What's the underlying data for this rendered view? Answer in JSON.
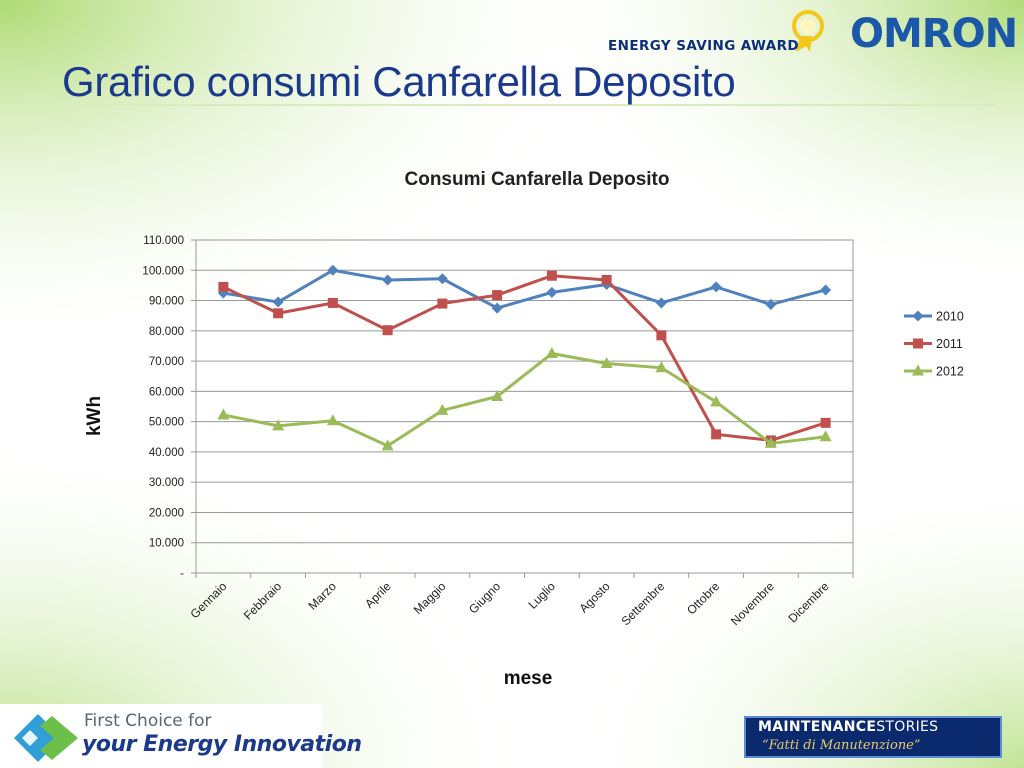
{
  "slide": {
    "title": "Grafico consumi Canfarella Deposito",
    "award_text": "ENERGY SAVING AWARD",
    "brand": "OMRON",
    "footer_tagline_line1": "First Choice for",
    "footer_tagline_line2": "your Energy Innovation",
    "footer_badge_line1": "MAINTENANCE",
    "footer_badge_line1b": "STORIES",
    "footer_badge_line2": "“Fatti di Manutenzione”"
  },
  "colors": {
    "title": "#1b3a8c",
    "brand": "#1b58a8",
    "series_2010": "#4f81bd",
    "series_2011": "#c0504d",
    "series_2012": "#9bbb59",
    "grid": "#9a9a9a",
    "background_green": "#b8e07a"
  },
  "chart_data": {
    "type": "line",
    "title": "Consumi Canfarella Deposito",
    "xlabel": "mese",
    "ylabel": "kWh",
    "categories": [
      "Gennaio",
      "Febbraio",
      "Marzo",
      "Aprile",
      "Maggio",
      "Giugno",
      "Luglio",
      "Agosto",
      "Settembre",
      "Ottobre",
      "Novembre",
      "Dicembre"
    ],
    "ylim": [
      0,
      110000
    ],
    "yticks": [
      "-",
      "10.000",
      "20.000",
      "30.000",
      "40.000",
      "50.000",
      "60.000",
      "70.000",
      "80.000",
      "90.000",
      "100.000",
      "110.000"
    ],
    "grid": true,
    "legend_position": "right",
    "series": [
      {
        "name": "2010",
        "marker": "diamond",
        "color": "#4f81bd",
        "values": [
          92500,
          89500,
          100000,
          96800,
          97200,
          87500,
          92700,
          95300,
          89200,
          94500,
          88700,
          93500
        ]
      },
      {
        "name": "2011",
        "marker": "square",
        "color": "#c0504d",
        "values": [
          94500,
          85800,
          89200,
          80200,
          89000,
          91800,
          98200,
          96800,
          78500,
          45800,
          43800,
          49600
        ]
      },
      {
        "name": "2012",
        "marker": "triangle",
        "color": "#9bbb59",
        "values": [
          52200,
          48600,
          50300,
          42000,
          53700,
          58300,
          72500,
          69200,
          67800,
          56500,
          42800,
          45000
        ]
      }
    ]
  }
}
